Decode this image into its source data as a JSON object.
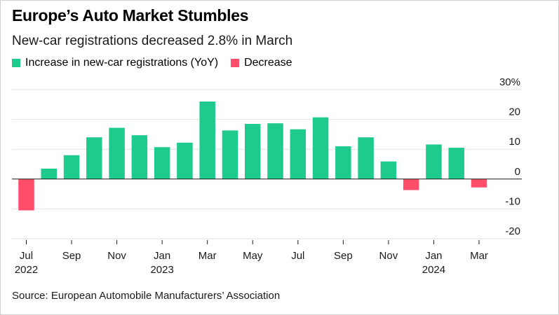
{
  "title": "Europe’s Auto Market Stumbles",
  "subtitle": "New-car registrations decreased 2.8% in March",
  "legend": {
    "increase": {
      "label": "Increase in new-car registrations (YoY)",
      "color": "#1ecb8c"
    },
    "decrease": {
      "label": "Decrease",
      "color": "#ff4d6a"
    }
  },
  "source": "Source: European Automobile Manufacturers’ Association",
  "chart_data": {
    "type": "bar",
    "title": "Europe’s Auto Market Stumbles",
    "subtitle": "New-car registrations decreased 2.8% in March",
    "xlabel": "",
    "ylabel": "",
    "ylim": [
      -20,
      30
    ],
    "yticks": [
      30,
      20,
      10,
      0,
      -10,
      -20
    ],
    "ytick_labels": [
      "30%",
      "20",
      "10",
      "0",
      "-10",
      "-20"
    ],
    "grid": true,
    "legend_position": "top-left",
    "categories": [
      "Jul 2022",
      "Aug 2022",
      "Sep 2022",
      "Oct 2022",
      "Nov 2022",
      "Dec 2022",
      "Jan 2023",
      "Feb 2023",
      "Mar 2023",
      "Apr 2023",
      "May 2023",
      "Jun 2023",
      "Jul 2023",
      "Aug 2023",
      "Sep 2023",
      "Oct 2023",
      "Nov 2023",
      "Dec 2023",
      "Jan 2024",
      "Feb 2024",
      "Mar 2024"
    ],
    "values": [
      -10.5,
      3.5,
      8.0,
      14.0,
      17.2,
      14.7,
      10.7,
      12.2,
      26.0,
      16.3,
      18.5,
      18.7,
      16.7,
      20.7,
      11.0,
      14.0,
      5.9,
      -3.7,
      11.6,
      10.5,
      -2.8
    ],
    "xtick_labels": [
      {
        "index": 0,
        "month": "Jul",
        "year": "2022"
      },
      {
        "index": 2,
        "month": "Sep",
        "year": ""
      },
      {
        "index": 4,
        "month": "Nov",
        "year": ""
      },
      {
        "index": 6,
        "month": "Jan",
        "year": "2023"
      },
      {
        "index": 8,
        "month": "Mar",
        "year": ""
      },
      {
        "index": 10,
        "month": "May",
        "year": ""
      },
      {
        "index": 12,
        "month": "Jul",
        "year": ""
      },
      {
        "index": 14,
        "month": "Sep",
        "year": ""
      },
      {
        "index": 16,
        "month": "Nov",
        "year": ""
      },
      {
        "index": 18,
        "month": "Jan",
        "year": "2024"
      },
      {
        "index": 20,
        "month": "Mar",
        "year": ""
      }
    ]
  }
}
